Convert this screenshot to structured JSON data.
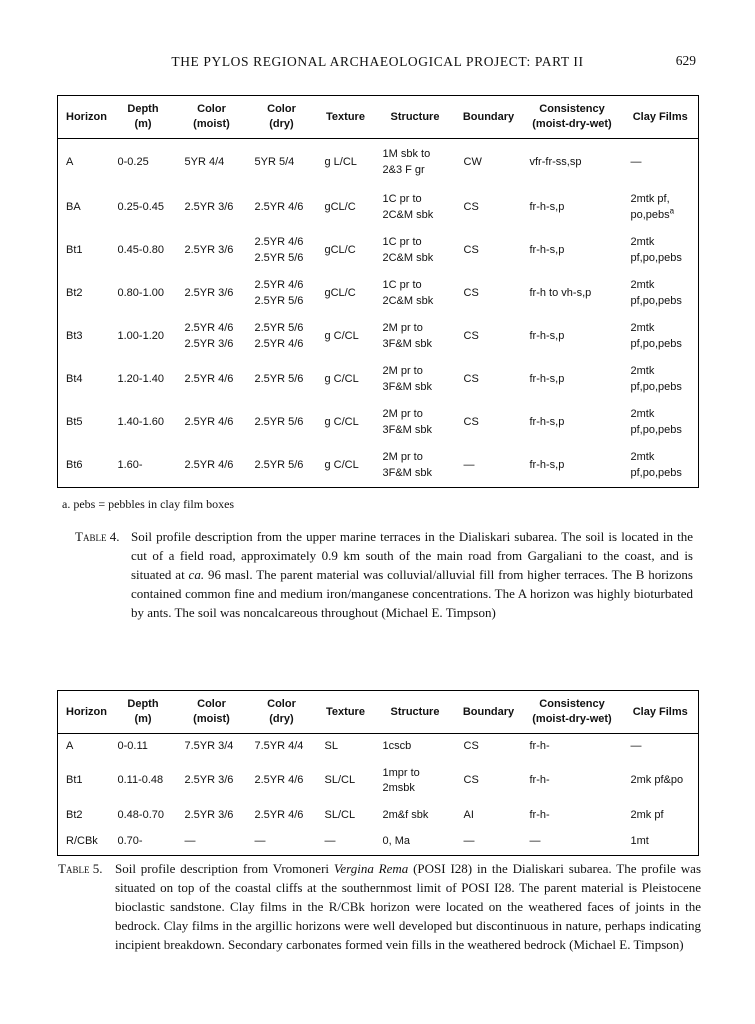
{
  "colors": {
    "background": "#ffffff",
    "text": "#111111",
    "table_border": "#000000"
  },
  "page": {
    "header_title": "THE PYLOS REGIONAL ARCHAEOLOGICAL PROJECT: PART II",
    "page_number": "629"
  },
  "table4": {
    "columns": [
      "Horizon",
      "Depth\n(m)",
      "Color\n(moist)",
      "Color\n(dry)",
      "Texture",
      "Structure",
      "Boundary",
      "Consistency\n(moist-dry-wet)",
      "Clay Films"
    ],
    "rows": [
      [
        "A",
        "0-0.25",
        "5YR 4/4",
        "5YR 5/4",
        "g L/CL",
        "1M sbk to\n2&3 F gr",
        "CW",
        "vfr-fr-ss,sp",
        "—"
      ],
      [
        "BA",
        "0.25-0.45",
        "2.5YR 3/6",
        "2.5YR 4/6",
        "gCL/C",
        "1C pr to\n2C&M sbk",
        "CS",
        "fr-h-s,p",
        "2mtk pf,\npo,pebs^a"
      ],
      [
        "Bt1",
        "0.45-0.80",
        "2.5YR 3/6",
        "2.5YR 4/6\n2.5YR 5/6",
        "gCL/C",
        "1C pr to\n2C&M sbk",
        "CS",
        "fr-h-s,p",
        "2mtk\npf,po,pebs"
      ],
      [
        "Bt2",
        "0.80-1.00",
        "2.5YR 3/6",
        "2.5YR 4/6\n2.5YR 5/6",
        "gCL/C",
        "1C pr to\n2C&M sbk",
        "CS",
        "fr-h to vh-s,p",
        "2mtk\npf,po,pebs"
      ],
      [
        "Bt3",
        "1.00-1.20",
        "2.5YR 4/6\n2.5YR 3/6",
        "2.5YR 5/6\n2.5YR 4/6",
        "g C/CL",
        "2M pr to\n3F&M sbk",
        "CS",
        "fr-h-s,p",
        "2mtk\npf,po,pebs"
      ],
      [
        "Bt4",
        "1.20-1.40",
        "2.5YR 4/6",
        "2.5YR 5/6",
        "g C/CL",
        "2M pr to\n3F&M sbk",
        "CS",
        "fr-h-s,p",
        "2mtk\npf,po,pebs"
      ],
      [
        "Bt5",
        "1.40-1.60",
        "2.5YR 4/6",
        "2.5YR 5/6",
        "g C/CL",
        "2M pr to\n3F&M sbk",
        "CS",
        "fr-h-s,p",
        "2mtk\npf,po,pebs"
      ],
      [
        "Bt6",
        "1.60-",
        "2.5YR 4/6",
        "2.5YR 5/6",
        "g C/CL",
        "2M pr to\n3F&M sbk",
        "—",
        "fr-h-s,p",
        "2mtk\npf,po,pebs"
      ]
    ],
    "footnote": "a. pebs = pebbles in clay film boxes",
    "caption_label": "Table 4.",
    "caption_segments": [
      {
        "text": "Soil profile description from the upper marine terraces in the Dialiskari subarea. The soil is located in the cut of a field road, approximately 0.9 km south of the main road from Gargaliani to the coast, and is situated at "
      },
      {
        "text": "ca.",
        "italic": true
      },
      {
        "text": " 96 masl. The parent material was colluvial/alluvial fill from higher terraces. The B horizons contained common fine and medium iron/manganese concentrations. The A horizon was highly bioturbated by ants. The soil was noncalcareous throughout (Michael E. Timpson)"
      }
    ]
  },
  "table5": {
    "columns": [
      "Horizon",
      "Depth\n(m)",
      "Color\n(moist)",
      "Color\n(dry)",
      "Texture",
      "Structure",
      "Boundary",
      "Consistency\n(moist-dry-wet)",
      "Clay Films"
    ],
    "rows": [
      [
        "A",
        "0-0.11",
        "7.5YR 3/4",
        "7.5YR 4/4",
        "SL",
        "1cscb",
        "CS",
        "fr-h-",
        "—"
      ],
      [
        "Bt1",
        "0.11-0.48",
        "2.5YR 3/6",
        "2.5YR 4/6",
        "SL/CL",
        "1mpr to\n2msbk",
        "CS",
        "fr-h-",
        "2mk pf&po"
      ],
      [
        "Bt2",
        "0.48-0.70",
        "2.5YR 3/6",
        "2.5YR 4/6",
        "SL/CL",
        "2m&f sbk",
        "AI",
        "fr-h-",
        "2mk pf"
      ],
      [
        "R/CBk",
        "0.70-",
        "—",
        "—",
        "—",
        "0, Ma",
        "—",
        "—",
        "1mt"
      ]
    ],
    "caption_label": "Table 5.",
    "caption_segments": [
      {
        "text": "Soil profile description from Vromoneri "
      },
      {
        "text": "Vergina Rema",
        "italic": true
      },
      {
        "text": " (POSI I28) in the Dialiskari subarea. The profile was situated on top of the coastal cliffs at the southernmost limit of POSI I28. The parent material is Pleistocene bioclastic sandstone. Clay films in the R/CBk horizon were located on the weathered faces of joints in the bedrock. Clay films in the argillic horizons were well developed but discontinuous in nature, perhaps indicating incipient breakdown. Secondary carbonates formed vein fills in the weathered bedrock (Michael E. Timpson)"
      }
    ]
  }
}
